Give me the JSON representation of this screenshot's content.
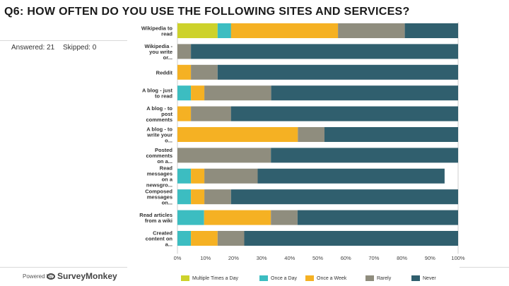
{
  "header": {
    "title": "Q6: HOW OFTEN DO YOU USE THE FOLLOWING SITES AND SERVICES?"
  },
  "summary": {
    "answered": "Answered: 21",
    "skipped": "Skipped: 0"
  },
  "footer": {
    "powered_by": "Powered by",
    "brand": "SurveyMonkey"
  },
  "chart_data": {
    "type": "bar",
    "orientation": "horizontal",
    "stacked": true,
    "title": "Q6: HOW OFTEN DO YOU USE THE FOLLOWING SITES AND SERVICES?",
    "xlim": [
      0,
      100
    ],
    "ticks": [
      "0%",
      "10%",
      "20%",
      "30%",
      "40%",
      "50%",
      "60%",
      "70%",
      "80%",
      "90%",
      "100%"
    ],
    "categories": [
      [
        "Wikipedia to",
        "read"
      ],
      [
        "Wikipedia -",
        "you write",
        "or..."
      ],
      [
        "Reddit"
      ],
      [
        "A blog - just",
        "to read"
      ],
      [
        "A blog - to",
        "post",
        "comments"
      ],
      [
        "A blog - to",
        "write your",
        "o..."
      ],
      [
        "Posted",
        "comments",
        "on a..."
      ],
      [
        "Read",
        "messages",
        "on a",
        "newsgro..."
      ],
      [
        "Composed",
        "messages",
        "on..."
      ],
      [
        "Read articles",
        "from a wiki"
      ],
      [
        "Created",
        "content on",
        "a..."
      ]
    ],
    "series": [
      {
        "name": "Multiple Times a Day",
        "color": "#cdd22b",
        "values": [
          14.3,
          0,
          0,
          0,
          0,
          0,
          0,
          0,
          0,
          0,
          0
        ]
      },
      {
        "name": "Once a Day",
        "color": "#3cbdc1",
        "values": [
          4.8,
          0,
          0,
          4.8,
          0,
          0,
          0,
          4.8,
          4.8,
          9.5,
          4.8
        ]
      },
      {
        "name": "Once a Week",
        "color": "#f5b123",
        "values": [
          38.1,
          0,
          4.8,
          4.8,
          4.8,
          42.9,
          0,
          4.8,
          4.8,
          23.8,
          9.5
        ]
      },
      {
        "name": "Rarely",
        "color": "#8f8d7e",
        "values": [
          23.8,
          4.8,
          9.5,
          23.8,
          14.3,
          9.5,
          33.3,
          19.0,
          9.5,
          9.5,
          9.5
        ]
      },
      {
        "name": "Never",
        "color": "#305f6e",
        "values": [
          19.0,
          95.2,
          85.7,
          66.6,
          80.9,
          47.6,
          66.7,
          66.6,
          80.9,
          57.2,
          76.2
        ]
      }
    ]
  }
}
